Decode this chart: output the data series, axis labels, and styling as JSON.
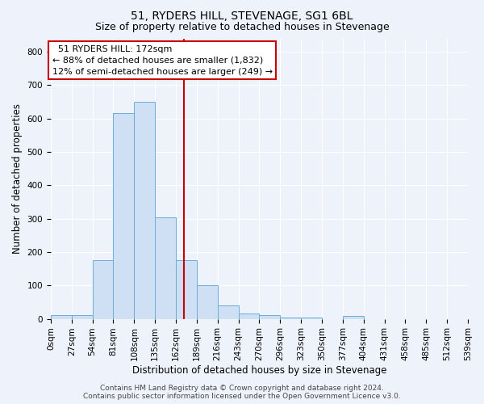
{
  "title": "51, RYDERS HILL, STEVENAGE, SG1 6BL",
  "subtitle": "Size of property relative to detached houses in Stevenage",
  "xlabel": "Distribution of detached houses by size in Stevenage",
  "ylabel": "Number of detached properties",
  "bin_edges": [
    0,
    27,
    54,
    81,
    108,
    135,
    162,
    189,
    216,
    243,
    270,
    297,
    324,
    351,
    378,
    405,
    432,
    459,
    486,
    513,
    540
  ],
  "bar_heights": [
    10,
    10,
    175,
    615,
    650,
    305,
    175,
    100,
    40,
    15,
    10,
    5,
    5,
    0,
    8,
    0,
    0,
    0,
    0,
    0
  ],
  "bar_color": "#cfe0f5",
  "bar_edge_color": "#6aadd5",
  "vline_x": 172,
  "vline_color": "#cc0000",
  "ylim": [
    0,
    840
  ],
  "yticks": [
    0,
    100,
    200,
    300,
    400,
    500,
    600,
    700,
    800
  ],
  "xtick_labels": [
    "0sqm",
    "27sqm",
    "54sqm",
    "81sqm",
    "108sqm",
    "135sqm",
    "162sqm",
    "189sqm",
    "216sqm",
    "243sqm",
    "270sqm",
    "296sqm",
    "323sqm",
    "350sqm",
    "377sqm",
    "404sqm",
    "431sqm",
    "458sqm",
    "485sqm",
    "512sqm",
    "539sqm"
  ],
  "annotation_text": "  51 RYDERS HILL: 172sqm\n← 88% of detached houses are smaller (1,832)\n12% of semi-detached houses are larger (249) →",
  "annotation_box_color": "#ffffff",
  "annotation_box_edge_color": "#cc0000",
  "footer_text": "Contains HM Land Registry data © Crown copyright and database right 2024.\nContains public sector information licensed under the Open Government Licence v3.0.",
  "bg_color": "#eef3fb",
  "grid_color": "#ffffff",
  "title_fontsize": 10,
  "subtitle_fontsize": 9,
  "axis_label_fontsize": 8.5,
  "tick_fontsize": 7.5,
  "annotation_fontsize": 8,
  "footer_fontsize": 6.5
}
